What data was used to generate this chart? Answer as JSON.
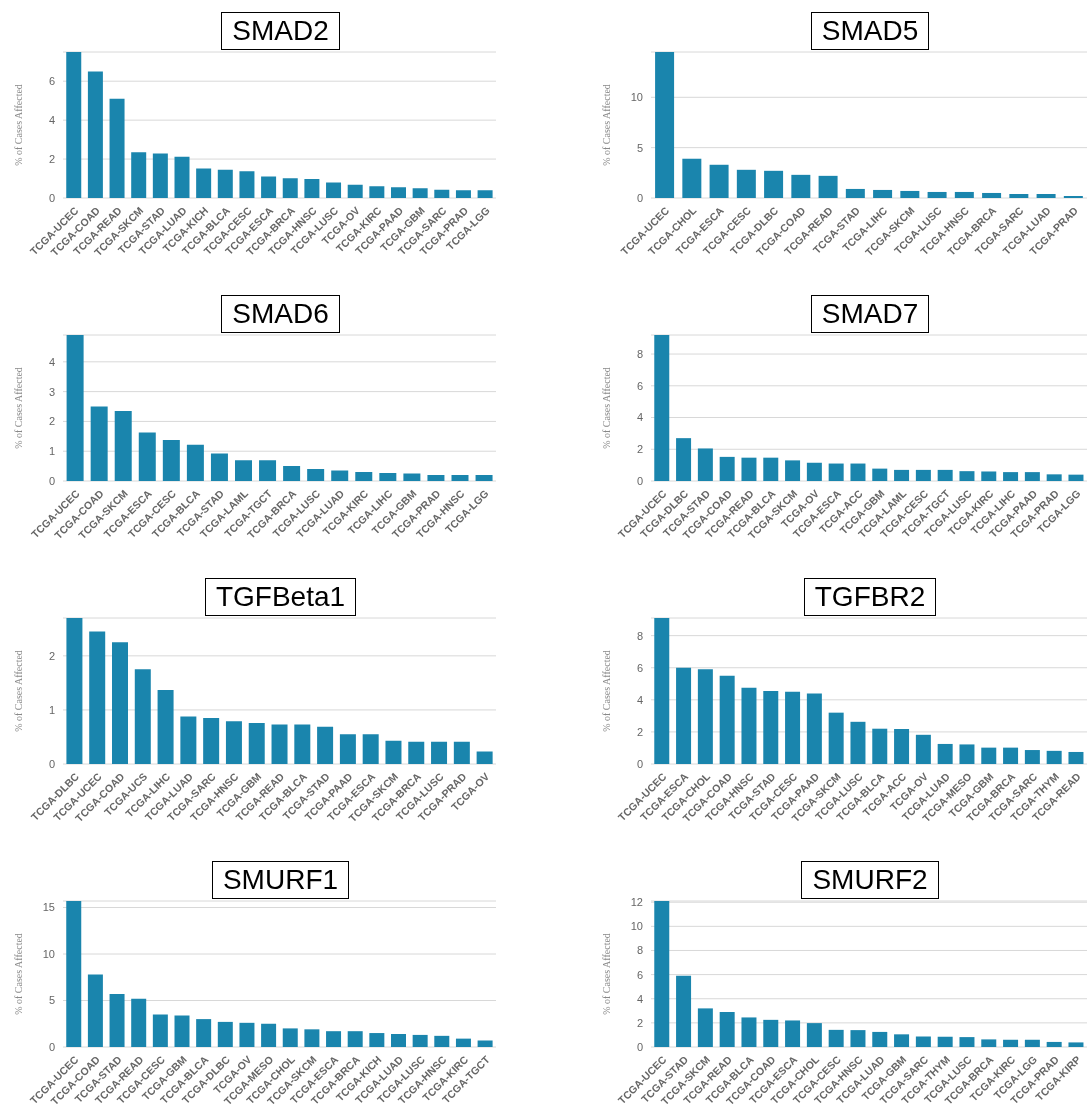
{
  "chart_data": [
    {
      "type": "bar",
      "title": "SMAD2",
      "ylabel": "% of Cases Affected",
      "color": "#1a85ad",
      "grid": "y",
      "ylim": [
        0,
        7.5
      ],
      "yticks": [
        0,
        2,
        4,
        6
      ],
      "categories": [
        "TCGA-UCEC",
        "TCGA-COAD",
        "TCGA-READ",
        "TCGA-SKCM",
        "TCGA-STAD",
        "TCGA-LUAD",
        "TCGA-KICH",
        "TCGA-BLCA",
        "TCGA-CESC",
        "TCGA-ESCA",
        "TCGA-BRCA",
        "TCGA-HNSC",
        "TCGA-LUSC",
        "TCGA-OV",
        "TCGA-KIRC",
        "TCGA-PAAD",
        "TCGA-GBM",
        "TCGA-SARC",
        "TCGA-PRAD",
        "TCGA-LGG"
      ],
      "values": [
        7.5,
        6.5,
        5.1,
        2.35,
        2.28,
        2.12,
        1.52,
        1.45,
        1.38,
        1.1,
        1.02,
        0.98,
        0.8,
        0.68,
        0.6,
        0.55,
        0.5,
        0.42,
        0.4,
        0.4
      ]
    },
    {
      "type": "bar",
      "title": "SMAD5",
      "ylabel": "% of Cases Affected",
      "color": "#1a85ad",
      "grid": "y",
      "ylim": [
        0,
        14.5
      ],
      "yticks": [
        0,
        5,
        10
      ],
      "categories": [
        "TCGA-UCEC",
        "TCGA-CHOL",
        "TCGA-ESCA",
        "TCGA-CESC",
        "TCGA-DLBC",
        "TCGA-COAD",
        "TCGA-READ",
        "TCGA-STAD",
        "TCGA-LIHC",
        "TCGA-SKCM",
        "TCGA-LUSC",
        "TCGA-HNSC",
        "TCGA-BRCA",
        "TCGA-SARC",
        "TCGA-LUAD",
        "TCGA-PRAD"
      ],
      "values": [
        14.5,
        3.9,
        3.3,
        2.8,
        2.7,
        2.3,
        2.2,
        0.9,
        0.8,
        0.7,
        0.6,
        0.6,
        0.5,
        0.4,
        0.4,
        0.2
      ]
    },
    {
      "type": "bar",
      "title": "SMAD6",
      "ylabel": "% of Cases Affected",
      "color": "#1a85ad",
      "grid": "y",
      "ylim": [
        0,
        4.9
      ],
      "yticks": [
        0,
        1,
        2,
        3,
        4
      ],
      "categories": [
        "TCGA-UCEC",
        "TCGA-COAD",
        "TCGA-SKCM",
        "TCGA-ESCA",
        "TCGA-CESC",
        "TCGA-BLCA",
        "TCGA-STAD",
        "TCGA-LAML",
        "TCGA-TGCT",
        "TCGA-BRCA",
        "TCGA-LUSC",
        "TCGA-LUAD",
        "TCGA-KIRC",
        "TCGA-LIHC",
        "TCGA-GBM",
        "TCGA-PRAD",
        "TCGA-HNSC",
        "TCGA-LGG"
      ],
      "values": [
        4.9,
        2.5,
        2.35,
        1.63,
        1.38,
        1.22,
        0.92,
        0.7,
        0.7,
        0.5,
        0.4,
        0.35,
        0.3,
        0.27,
        0.25,
        0.2,
        0.2,
        0.2
      ]
    },
    {
      "type": "bar",
      "title": "SMAD7",
      "ylabel": "% of Cases Affected",
      "color": "#1a85ad",
      "grid": "y",
      "ylim": [
        0,
        9.2
      ],
      "yticks": [
        0,
        2,
        4,
        6,
        8
      ],
      "categories": [
        "TCGA-UCEC",
        "TCGA-DLBC",
        "TCGA-STAD",
        "TCGA-COAD",
        "TCGA-READ",
        "TCGA-BLCA",
        "TCGA-SKCM",
        "TCGA-OV",
        "TCGA-ESCA",
        "TCGA-ACC",
        "TCGA-GBM",
        "TCGA-LAML",
        "TCGA-CESC",
        "TCGA-TGCT",
        "TCGA-LUSC",
        "TCGA-KIRC",
        "TCGA-LIHC",
        "TCGA-PAAD",
        "TCGA-PRAD",
        "TCGA-LGG"
      ],
      "values": [
        9.2,
        2.7,
        2.05,
        1.52,
        1.47,
        1.47,
        1.3,
        1.15,
        1.1,
        1.1,
        0.78,
        0.7,
        0.7,
        0.7,
        0.62,
        0.6,
        0.56,
        0.56,
        0.42,
        0.4
      ]
    },
    {
      "type": "bar",
      "title": "TGFBeta1",
      "ylabel": "% of Cases Affected",
      "color": "#1a85ad",
      "grid": "y",
      "ylim": [
        0,
        2.7
      ],
      "yticks": [
        0,
        1,
        2
      ],
      "categories": [
        "TCGA-DLBC",
        "TCGA-UCEC",
        "TCGA-COAD",
        "TCGA-UCS",
        "TCGA-LIHC",
        "TCGA-LUAD",
        "TCGA-SARC",
        "TCGA-HNSC",
        "TCGA-GBM",
        "TCGA-READ",
        "TCGA-BLCA",
        "TCGA-STAD",
        "TCGA-PAAD",
        "TCGA-ESCA",
        "TCGA-SKCM",
        "TCGA-BRCA",
        "TCGA-LUSC",
        "TCGA-PRAD",
        "TCGA-OV"
      ],
      "values": [
        2.7,
        2.45,
        2.25,
        1.75,
        1.37,
        0.88,
        0.85,
        0.79,
        0.76,
        0.73,
        0.73,
        0.69,
        0.55,
        0.55,
        0.43,
        0.41,
        0.41,
        0.41,
        0.23
      ]
    },
    {
      "type": "bar",
      "title": "TGFBR2",
      "ylabel": "% of Cases Affected",
      "color": "#1a85ad",
      "grid": "y",
      "ylim": [
        0,
        9.1
      ],
      "yticks": [
        0,
        2,
        4,
        6,
        8
      ],
      "categories": [
        "TCGA-UCEC",
        "TCGA-ESCA",
        "TCGA-CHOL",
        "TCGA-COAD",
        "TCGA-HNSC",
        "TCGA-STAD",
        "TCGA-CESC",
        "TCGA-PAAD",
        "TCGA-SKCM",
        "TCGA-LUSC",
        "TCGA-BLCA",
        "TCGA-ACC",
        "TCGA-OV",
        "TCGA-LUAD",
        "TCGA-MESO",
        "TCGA-GBM",
        "TCGA-BRCA",
        "TCGA-SARC",
        "TCGA-THYM",
        "TCGA-READ"
      ],
      "values": [
        9.1,
        6.0,
        5.9,
        5.5,
        4.75,
        4.55,
        4.5,
        4.4,
        3.2,
        2.63,
        2.2,
        2.18,
        1.82,
        1.25,
        1.22,
        1.02,
        1.02,
        0.87,
        0.82,
        0.75
      ]
    },
    {
      "type": "bar",
      "title": "SMURF1",
      "ylabel": "% of Cases Affected",
      "color": "#1a85ad",
      "grid": "y",
      "ylim": [
        0,
        15.7
      ],
      "yticks": [
        0,
        5,
        10,
        15
      ],
      "categories": [
        "TCGA-UCEC",
        "TCGA-COAD",
        "TCGA-STAD",
        "TCGA-READ",
        "TCGA-CESC",
        "TCGA-GBM",
        "TCGA-BLCA",
        "TCGA-DLBC",
        "TCGA-OV",
        "TCGA-MESO",
        "TCGA-CHOL",
        "TCGA-SKCM",
        "TCGA-ESCA",
        "TCGA-BRCA",
        "TCGA-KICH",
        "TCGA-LUAD",
        "TCGA-LUSC",
        "TCGA-HNSC",
        "TCGA-KIRC",
        "TCGA-TGCT"
      ],
      "values": [
        15.7,
        7.8,
        5.7,
        5.2,
        3.5,
        3.4,
        3.0,
        2.7,
        2.6,
        2.5,
        2.0,
        1.9,
        1.7,
        1.7,
        1.5,
        1.4,
        1.3,
        1.2,
        0.9,
        0.7
      ]
    },
    {
      "type": "bar",
      "title": "SMURF2",
      "ylabel": "% of Cases Affected",
      "color": "#1a85ad",
      "grid": "y",
      "ylim": [
        0,
        12.1
      ],
      "yticks": [
        0,
        2,
        4,
        6,
        8,
        10,
        12
      ],
      "categories": [
        "TCGA-UCEC",
        "TCGA-STAD",
        "TCGA-SKCM",
        "TCGA-READ",
        "TCGA-BLCA",
        "TCGA-COAD",
        "TCGA-ESCA",
        "TCGA-CHOL",
        "TCGA-CESC",
        "TCGA-HNSC",
        "TCGA-LUAD",
        "TCGA-GBM",
        "TCGA-SARC",
        "TCGA-THYM",
        "TCGA-LUSC",
        "TCGA-BRCA",
        "TCGA-KIRC",
        "TCGA-LGG",
        "TCGA-PRAD",
        "TCGA-KIRP"
      ],
      "values": [
        12.1,
        5.9,
        3.2,
        2.9,
        2.45,
        2.25,
        2.2,
        1.98,
        1.42,
        1.4,
        1.25,
        1.05,
        0.87,
        0.85,
        0.82,
        0.63,
        0.6,
        0.6,
        0.42,
        0.38
      ]
    }
  ]
}
